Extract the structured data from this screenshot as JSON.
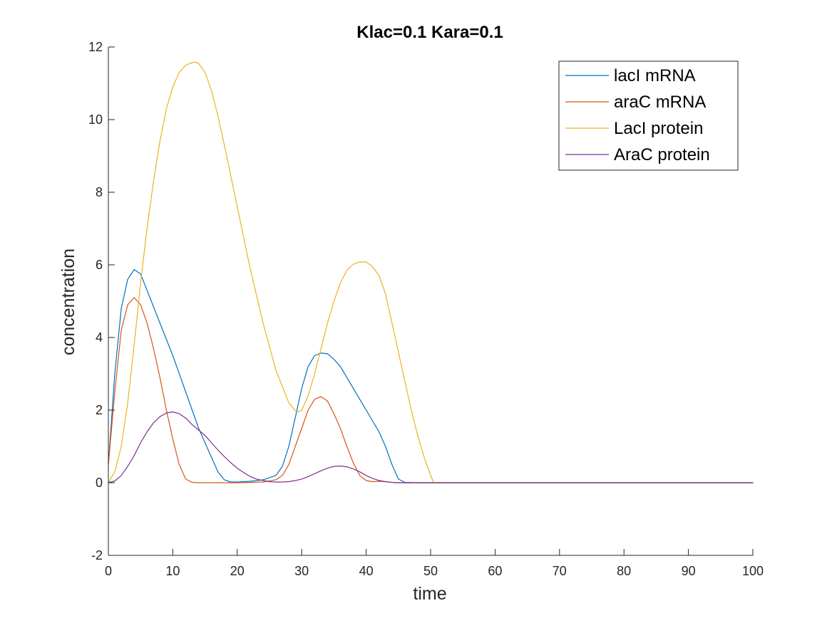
{
  "chart_data": {
    "type": "line",
    "title": "Klac=0.1 Kara=0.1",
    "xlabel": "time",
    "ylabel": "concentration",
    "xlim": [
      0,
      100
    ],
    "ylim": [
      -2,
      12
    ],
    "xticks": [
      0,
      10,
      20,
      30,
      40,
      50,
      60,
      70,
      80,
      90,
      100
    ],
    "yticks": [
      -2,
      0,
      2,
      4,
      6,
      8,
      10,
      12
    ],
    "grid": false,
    "legend_position": "top-right",
    "series": [
      {
        "name": "lacI mRNA",
        "color": "#0072BD",
        "x": [
          0,
          1,
          2,
          3,
          4,
          5,
          6,
          8,
          10,
          12,
          14,
          16,
          17,
          18,
          19,
          20,
          22,
          24,
          26,
          27,
          28,
          29,
          30,
          31,
          32,
          33,
          34,
          35,
          36,
          38,
          40,
          42,
          43,
          44,
          45,
          46,
          48,
          50,
          60,
          70,
          80,
          90,
          100
        ],
        "y": [
          0.5,
          3.0,
          4.8,
          5.6,
          5.87,
          5.75,
          5.3,
          4.4,
          3.5,
          2.5,
          1.5,
          0.7,
          0.3,
          0.08,
          0.02,
          0.02,
          0.04,
          0.08,
          0.2,
          0.45,
          1.0,
          1.8,
          2.6,
          3.2,
          3.5,
          3.57,
          3.55,
          3.4,
          3.2,
          2.6,
          2.0,
          1.4,
          1.0,
          0.5,
          0.1,
          0.01,
          0,
          0,
          0,
          0,
          0,
          0,
          0
        ]
      },
      {
        "name": "araC mRNA",
        "color": "#D95319",
        "x": [
          0,
          1,
          2,
          3,
          4,
          5,
          6,
          7,
          8,
          9,
          10,
          11,
          12,
          13,
          14,
          16,
          20,
          24,
          26,
          27,
          28,
          29,
          30,
          31,
          32,
          33,
          34,
          35,
          36,
          37,
          38,
          39,
          40,
          41,
          42,
          43,
          44,
          45,
          50,
          60,
          70,
          80,
          90,
          100
        ],
        "y": [
          0.5,
          2.5,
          4.2,
          4.9,
          5.1,
          4.9,
          4.4,
          3.7,
          2.9,
          2.0,
          1.2,
          0.5,
          0.1,
          0.01,
          0,
          0,
          0,
          0.02,
          0.08,
          0.2,
          0.5,
          1.0,
          1.5,
          2.0,
          2.3,
          2.37,
          2.25,
          1.9,
          1.5,
          1.0,
          0.55,
          0.2,
          0.06,
          0.03,
          0.04,
          0.03,
          0.01,
          0,
          0,
          0,
          0,
          0,
          0,
          0
        ]
      },
      {
        "name": "LacI protein",
        "color": "#EDB120",
        "x": [
          0,
          1,
          2,
          3,
          4,
          5,
          6,
          7,
          8,
          9,
          10,
          11,
          12,
          13,
          13.5,
          14,
          15,
          16,
          17,
          18,
          20,
          22,
          24,
          26,
          28,
          29,
          29.5,
          30,
          31,
          32,
          33,
          34,
          35,
          36,
          37,
          38,
          39,
          40,
          41,
          42,
          43,
          44,
          45,
          46,
          47,
          48,
          49,
          50,
          50.5,
          52,
          60,
          70,
          80,
          90,
          100
        ],
        "y": [
          0,
          0.3,
          1.0,
          2.2,
          3.8,
          5.5,
          7.0,
          8.3,
          9.4,
          10.3,
          10.9,
          11.3,
          11.5,
          11.57,
          11.58,
          11.55,
          11.3,
          10.8,
          10.1,
          9.3,
          7.6,
          5.9,
          4.4,
          3.1,
          2.2,
          1.98,
          1.95,
          2.0,
          2.4,
          3.0,
          3.7,
          4.4,
          5.0,
          5.5,
          5.85,
          6.02,
          6.08,
          6.08,
          5.95,
          5.7,
          5.2,
          4.4,
          3.6,
          2.8,
          2.0,
          1.3,
          0.7,
          0.2,
          0,
          0,
          0,
          0,
          0,
          0,
          0
        ]
      },
      {
        "name": "AraC protein",
        "color": "#7E2F8E",
        "x": [
          0,
          1,
          2,
          3,
          4,
          5,
          6,
          7,
          8,
          9,
          10,
          11,
          12,
          13,
          14,
          15,
          16,
          17,
          18,
          19,
          20,
          21,
          22,
          23,
          24,
          25,
          26,
          27,
          28,
          29,
          30,
          31,
          32,
          33,
          34,
          35,
          36,
          37,
          38,
          39,
          40,
          41,
          42,
          43,
          44,
          45,
          46,
          50,
          60,
          70,
          80,
          90,
          100
        ],
        "y": [
          0,
          0.05,
          0.2,
          0.45,
          0.75,
          1.1,
          1.4,
          1.65,
          1.82,
          1.92,
          1.95,
          1.9,
          1.78,
          1.6,
          1.45,
          1.3,
          1.1,
          0.9,
          0.72,
          0.55,
          0.4,
          0.28,
          0.17,
          0.1,
          0.06,
          0.03,
          0.02,
          0.02,
          0.03,
          0.06,
          0.1,
          0.17,
          0.25,
          0.33,
          0.4,
          0.45,
          0.46,
          0.44,
          0.38,
          0.3,
          0.2,
          0.12,
          0.06,
          0.03,
          0.01,
          0,
          0,
          0,
          0,
          0,
          0,
          0,
          0
        ]
      }
    ]
  }
}
